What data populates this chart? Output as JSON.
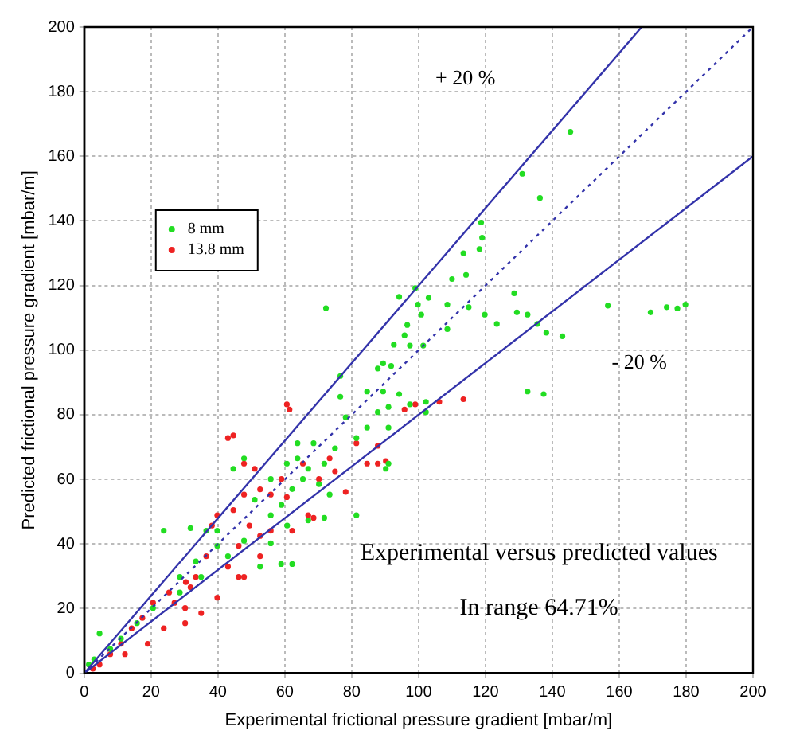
{
  "chart_data": {
    "type": "scatter",
    "xlabel": "Experimental frictional pressure gradient [mbar/m]",
    "ylabel": "Predicted frictional pressure gradient [mbar/m]",
    "xlim": [
      0,
      200
    ],
    "ylim": [
      0,
      200
    ],
    "xticks": [
      0,
      20,
      40,
      60,
      80,
      100,
      120,
      140,
      160,
      180,
      200
    ],
    "yticks": [
      0,
      20,
      40,
      60,
      80,
      100,
      120,
      140,
      160,
      180,
      200
    ],
    "grid": true,
    "legend": "top left",
    "annotations": [
      "+ 20 %",
      "- 20 %",
      "Experimental versus predicted values",
      "In range 64.71%"
    ],
    "series": [
      {
        "type": "line",
        "color": "#3333aa",
        "line_style": "solid",
        "marker": "none",
        "x": [
          0,
          166.7
        ],
        "values": [
          0,
          200
        ]
      },
      {
        "type": "line",
        "color": "#3333aa",
        "line_style": "dotted",
        "marker": "none",
        "x": [
          0,
          200
        ],
        "values": [
          0,
          200
        ]
      },
      {
        "type": "line",
        "color": "#3333aa",
        "line_style": "solid",
        "marker": "none",
        "x": [
          0,
          200
        ],
        "values": [
          0,
          160
        ]
      },
      {
        "name": "8 mm",
        "color": "#22dd22",
        "marker": "circle",
        "x": [
          145.4,
          131,
          136.3,
          118.7,
          119,
          113.4,
          118.2,
          114.2,
          110,
          72.3,
          99,
          94.2,
          99.8,
          103,
          100.8,
          108.6,
          115,
          119.8,
          123.4,
          128.6,
          129.4,
          132.6,
          135.5,
          138.2,
          143,
          156.6,
          169.4,
          174.2,
          179.8,
          177.4,
          96.6,
          97.4,
          92.6,
          101.4,
          95.8,
          108.6,
          89.4,
          132.6,
          137.4,
          87.8,
          91.8,
          84.6,
          89.4,
          94.2,
          97.4,
          102.2,
          102.2,
          76.6,
          78.2,
          84.6,
          87.8,
          91,
          81.4,
          91,
          76.6,
          71.8,
          75,
          68.6,
          63.8,
          63.8,
          65.4,
          70.2,
          73.4,
          62.2,
          67,
          91,
          90.2,
          81.4,
          59,
          55.8,
          60.7,
          67,
          71.8,
          47.8,
          44.6,
          23.8,
          31.8,
          36.5,
          47.8,
          55.8,
          52.6,
          58.9,
          62.2,
          39.8,
          43,
          35,
          28.6,
          20.6,
          15.8,
          11,
          4.6,
          7.8,
          3,
          1.4,
          28.6,
          33.4,
          39.8,
          51,
          55.8,
          60.6
        ],
        "values": [
          167.6,
          154.6,
          147.1,
          139.5,
          134.8,
          130,
          131.3,
          123.3,
          122,
          113,
          119.2,
          116.5,
          114.1,
          116.2,
          111,
          114.1,
          113.3,
          111,
          108.1,
          117.6,
          111.7,
          111,
          108.1,
          105.4,
          104.3,
          113.8,
          111.7,
          113.3,
          114.1,
          112.9,
          107.8,
          101.4,
          101.7,
          101.4,
          104.6,
          106.5,
          95.9,
          87.2,
          86.4,
          94.3,
          95.1,
          87.2,
          87.2,
          86.4,
          83.2,
          80.8,
          84,
          85.6,
          79.2,
          76,
          80.8,
          82.4,
          72.8,
          76,
          92,
          64.9,
          69.6,
          71.2,
          71.2,
          66.5,
          60.1,
          58.5,
          55.3,
          57,
          63.3,
          64.9,
          63.3,
          48.9,
          52.1,
          48.9,
          45.7,
          47.3,
          48.1,
          66.5,
          63.3,
          44.1,
          44.9,
          44.1,
          41,
          40.2,
          33,
          33.8,
          33.8,
          39.4,
          36.2,
          29.8,
          25,
          20.2,
          15.5,
          10.7,
          12.3,
          7.5,
          4.3,
          2.7,
          29.8,
          34.6,
          44.1,
          53.7,
          60.1,
          64.9
        ]
      },
      {
        "name": "13.8 mm",
        "color": "#ee2222",
        "marker": "circle",
        "x": [
          43,
          44.6,
          60.6,
          61.4,
          113.4,
          106.2,
          95.8,
          99,
          87.8,
          90.2,
          84.6,
          78.2,
          75,
          70.2,
          67,
          68.6,
          60.6,
          55.8,
          59,
          52.6,
          47.8,
          44.6,
          49.4,
          52.6,
          39.8,
          38.2,
          47.8,
          51,
          55.8,
          62.2,
          46.2,
          43,
          36.5,
          33.4,
          39.8,
          35,
          30.2,
          30.4,
          25.4,
          20.6,
          17.4,
          14.2,
          11,
          7.8,
          4.6,
          2.6,
          23.8,
          30.2,
          19,
          12.2,
          31.8,
          27,
          46.2,
          52.6,
          47.8,
          65.4,
          73.4,
          81.4,
          87.8
        ],
        "values": [
          72.8,
          73.6,
          83.2,
          81.6,
          84.8,
          84,
          81.6,
          83.2,
          64.9,
          65.7,
          64.9,
          56.1,
          62.5,
          60.1,
          48.9,
          48.1,
          54.5,
          55.3,
          60.1,
          56.9,
          55.3,
          50.5,
          45.7,
          42.5,
          48.9,
          45.7,
          64.9,
          63.3,
          44.1,
          44.1,
          39.4,
          33,
          36.2,
          29.8,
          23.4,
          18.6,
          20.2,
          28.2,
          25,
          21.8,
          17.1,
          13.9,
          9.1,
          5.9,
          2.7,
          1.4,
          13.9,
          15.5,
          9.1,
          5.9,
          26.6,
          21.8,
          29.8,
          36.2,
          29.8,
          64.9,
          66.5,
          71.2,
          70.4
        ]
      }
    ]
  }
}
